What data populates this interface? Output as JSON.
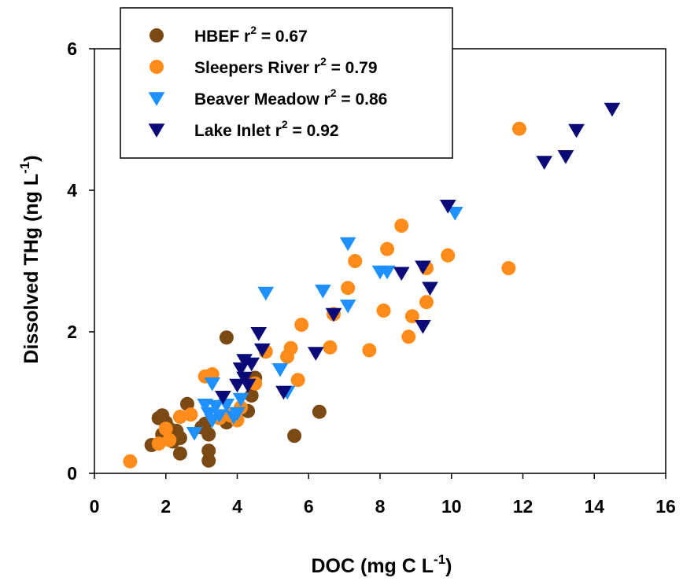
{
  "chart_data": {
    "type": "scatter",
    "xlabel": "DOC (mg C L",
    "xlabel_sup": "-1",
    "xlabel_suffix": ")",
    "ylabel": "Dissolved THg (ng L",
    "ylabel_sup": "-1",
    "ylabel_suffix": ")",
    "xlim": [
      0,
      16
    ],
    "ylim": [
      0,
      6
    ],
    "xticks": [
      0,
      2,
      4,
      6,
      8,
      10,
      12,
      14,
      16
    ],
    "yticks": [
      0,
      2,
      4,
      6
    ],
    "grid": false,
    "legend_position": "top-left",
    "series": [
      {
        "name": "HBEF r",
        "r2": "2",
        "r2_value": " = 0.67",
        "marker": "circle",
        "color": "#7B4A14",
        "points": [
          [
            1.6,
            0.4
          ],
          [
            1.8,
            0.78
          ],
          [
            1.9,
            0.82
          ],
          [
            1.9,
            0.55
          ],
          [
            2.0,
            0.72
          ],
          [
            2.1,
            0.63
          ],
          [
            2.2,
            0.45
          ],
          [
            2.3,
            0.6
          ],
          [
            2.4,
            0.28
          ],
          [
            2.4,
            0.5
          ],
          [
            2.6,
            0.98
          ],
          [
            3.0,
            0.65
          ],
          [
            3.1,
            0.7
          ],
          [
            3.2,
            0.32
          ],
          [
            3.2,
            0.18
          ],
          [
            3.2,
            0.55
          ],
          [
            3.7,
            1.92
          ],
          [
            3.7,
            0.72
          ],
          [
            4.3,
            0.88
          ],
          [
            4.4,
            1.1
          ],
          [
            4.5,
            1.35
          ],
          [
            5.6,
            0.53
          ],
          [
            6.3,
            0.87
          ]
        ]
      },
      {
        "name": "Sleepers River r",
        "r2": "2",
        "r2_value": " = 0.79",
        "marker": "circle",
        "color": "#FF8C1A",
        "points": [
          [
            1.0,
            0.17
          ],
          [
            1.8,
            0.42
          ],
          [
            2.0,
            0.63
          ],
          [
            2.1,
            0.47
          ],
          [
            2.4,
            0.8
          ],
          [
            2.7,
            0.83
          ],
          [
            3.1,
            1.37
          ],
          [
            3.3,
            1.4
          ],
          [
            3.5,
            0.78
          ],
          [
            3.8,
            0.82
          ],
          [
            4.0,
            0.75
          ],
          [
            4.1,
            0.93
          ],
          [
            4.5,
            1.27
          ],
          [
            4.8,
            1.72
          ],
          [
            5.4,
            1.65
          ],
          [
            5.5,
            1.77
          ],
          [
            5.7,
            1.32
          ],
          [
            5.8,
            2.1
          ],
          [
            6.6,
            1.78
          ],
          [
            6.7,
            2.25
          ],
          [
            7.1,
            2.62
          ],
          [
            7.3,
            3.0
          ],
          [
            7.7,
            1.74
          ],
          [
            8.1,
            2.3
          ],
          [
            8.2,
            3.17
          ],
          [
            8.6,
            3.5
          ],
          [
            8.8,
            1.93
          ],
          [
            8.9,
            2.22
          ],
          [
            9.3,
            2.42
          ],
          [
            9.3,
            2.9
          ],
          [
            9.9,
            3.08
          ],
          [
            11.6,
            2.9
          ],
          [
            11.9,
            4.87
          ]
        ]
      },
      {
        "name": "Beaver Meadow r",
        "r2": "2",
        "r2_value": " = 0.86",
        "marker": "triangle-down",
        "color": "#1E90FF",
        "points": [
          [
            2.8,
            0.57
          ],
          [
            3.1,
            0.97
          ],
          [
            3.2,
            0.85
          ],
          [
            3.3,
            0.75
          ],
          [
            3.3,
            1.27
          ],
          [
            3.4,
            0.95
          ],
          [
            3.5,
            0.82
          ],
          [
            3.7,
            0.97
          ],
          [
            3.9,
            0.8
          ],
          [
            4.0,
            0.85
          ],
          [
            4.1,
            1.05
          ],
          [
            4.8,
            2.55
          ],
          [
            5.2,
            1.47
          ],
          [
            5.4,
            1.15
          ],
          [
            6.4,
            2.58
          ],
          [
            7.1,
            2.37
          ],
          [
            7.1,
            3.25
          ],
          [
            8.0,
            2.85
          ],
          [
            8.2,
            2.85
          ],
          [
            10.1,
            3.68
          ]
        ]
      },
      {
        "name": "Lake Inlet r",
        "r2": "2",
        "r2_value": " = 0.92",
        "marker": "triangle-down",
        "color": "#0A0A78",
        "points": [
          [
            3.6,
            1.08
          ],
          [
            4.0,
            1.25
          ],
          [
            4.1,
            1.48
          ],
          [
            4.2,
            1.35
          ],
          [
            4.2,
            1.6
          ],
          [
            4.3,
            1.25
          ],
          [
            4.4,
            1.55
          ],
          [
            4.6,
            1.98
          ],
          [
            4.7,
            1.75
          ],
          [
            5.3,
            1.15
          ],
          [
            6.2,
            1.7
          ],
          [
            6.7,
            2.25
          ],
          [
            8.6,
            2.83
          ],
          [
            9.2,
            2.08
          ],
          [
            9.2,
            2.92
          ],
          [
            9.4,
            2.62
          ],
          [
            9.9,
            3.78
          ],
          [
            12.6,
            4.4
          ],
          [
            13.2,
            4.48
          ],
          [
            13.5,
            4.85
          ],
          [
            14.5,
            5.15
          ]
        ]
      }
    ]
  }
}
